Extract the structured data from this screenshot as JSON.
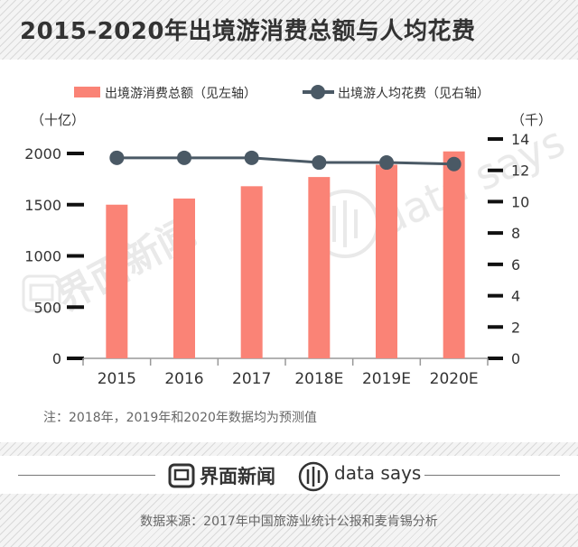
{
  "title": "2015-2020年出境游消费总额与人均花费",
  "chart_data": {
    "type": "bar+line",
    "categories": [
      "2015",
      "2016",
      "2017",
      "2018E",
      "2019E",
      "2020E"
    ],
    "series": [
      {
        "name": "出境游消费总额（见左轴）",
        "type": "bar",
        "axis": "left",
        "color": "#fa8376",
        "values": [
          1500,
          1560,
          1680,
          1770,
          1890,
          2020
        ]
      },
      {
        "name": "出境游人均花费（见右轴）",
        "type": "line",
        "axis": "right",
        "color": "#4a5965",
        "values": [
          12.8,
          12.8,
          12.8,
          12.5,
          12.5,
          12.4
        ]
      }
    ],
    "left_axis": {
      "unit": "（十亿）",
      "range": [
        0,
        2000
      ],
      "ticks": [
        0,
        500,
        1000,
        1500,
        2000
      ]
    },
    "right_axis": {
      "unit": "（千）",
      "range": [
        0,
        14
      ],
      "ticks": [
        0,
        2,
        4,
        6,
        8,
        10,
        12,
        14
      ]
    },
    "legend_position": "top"
  },
  "note": "注：2018年，2019年和2020年数据均为预测值",
  "footer": {
    "brand_jiemian": "界面新闻",
    "brand_datasays": "data says"
  },
  "source": "数据来源：2017年中国旅游业统计公报和麦肯锡分析",
  "watermark": {
    "jiemian": "界面新闻",
    "datasays": "data says"
  }
}
